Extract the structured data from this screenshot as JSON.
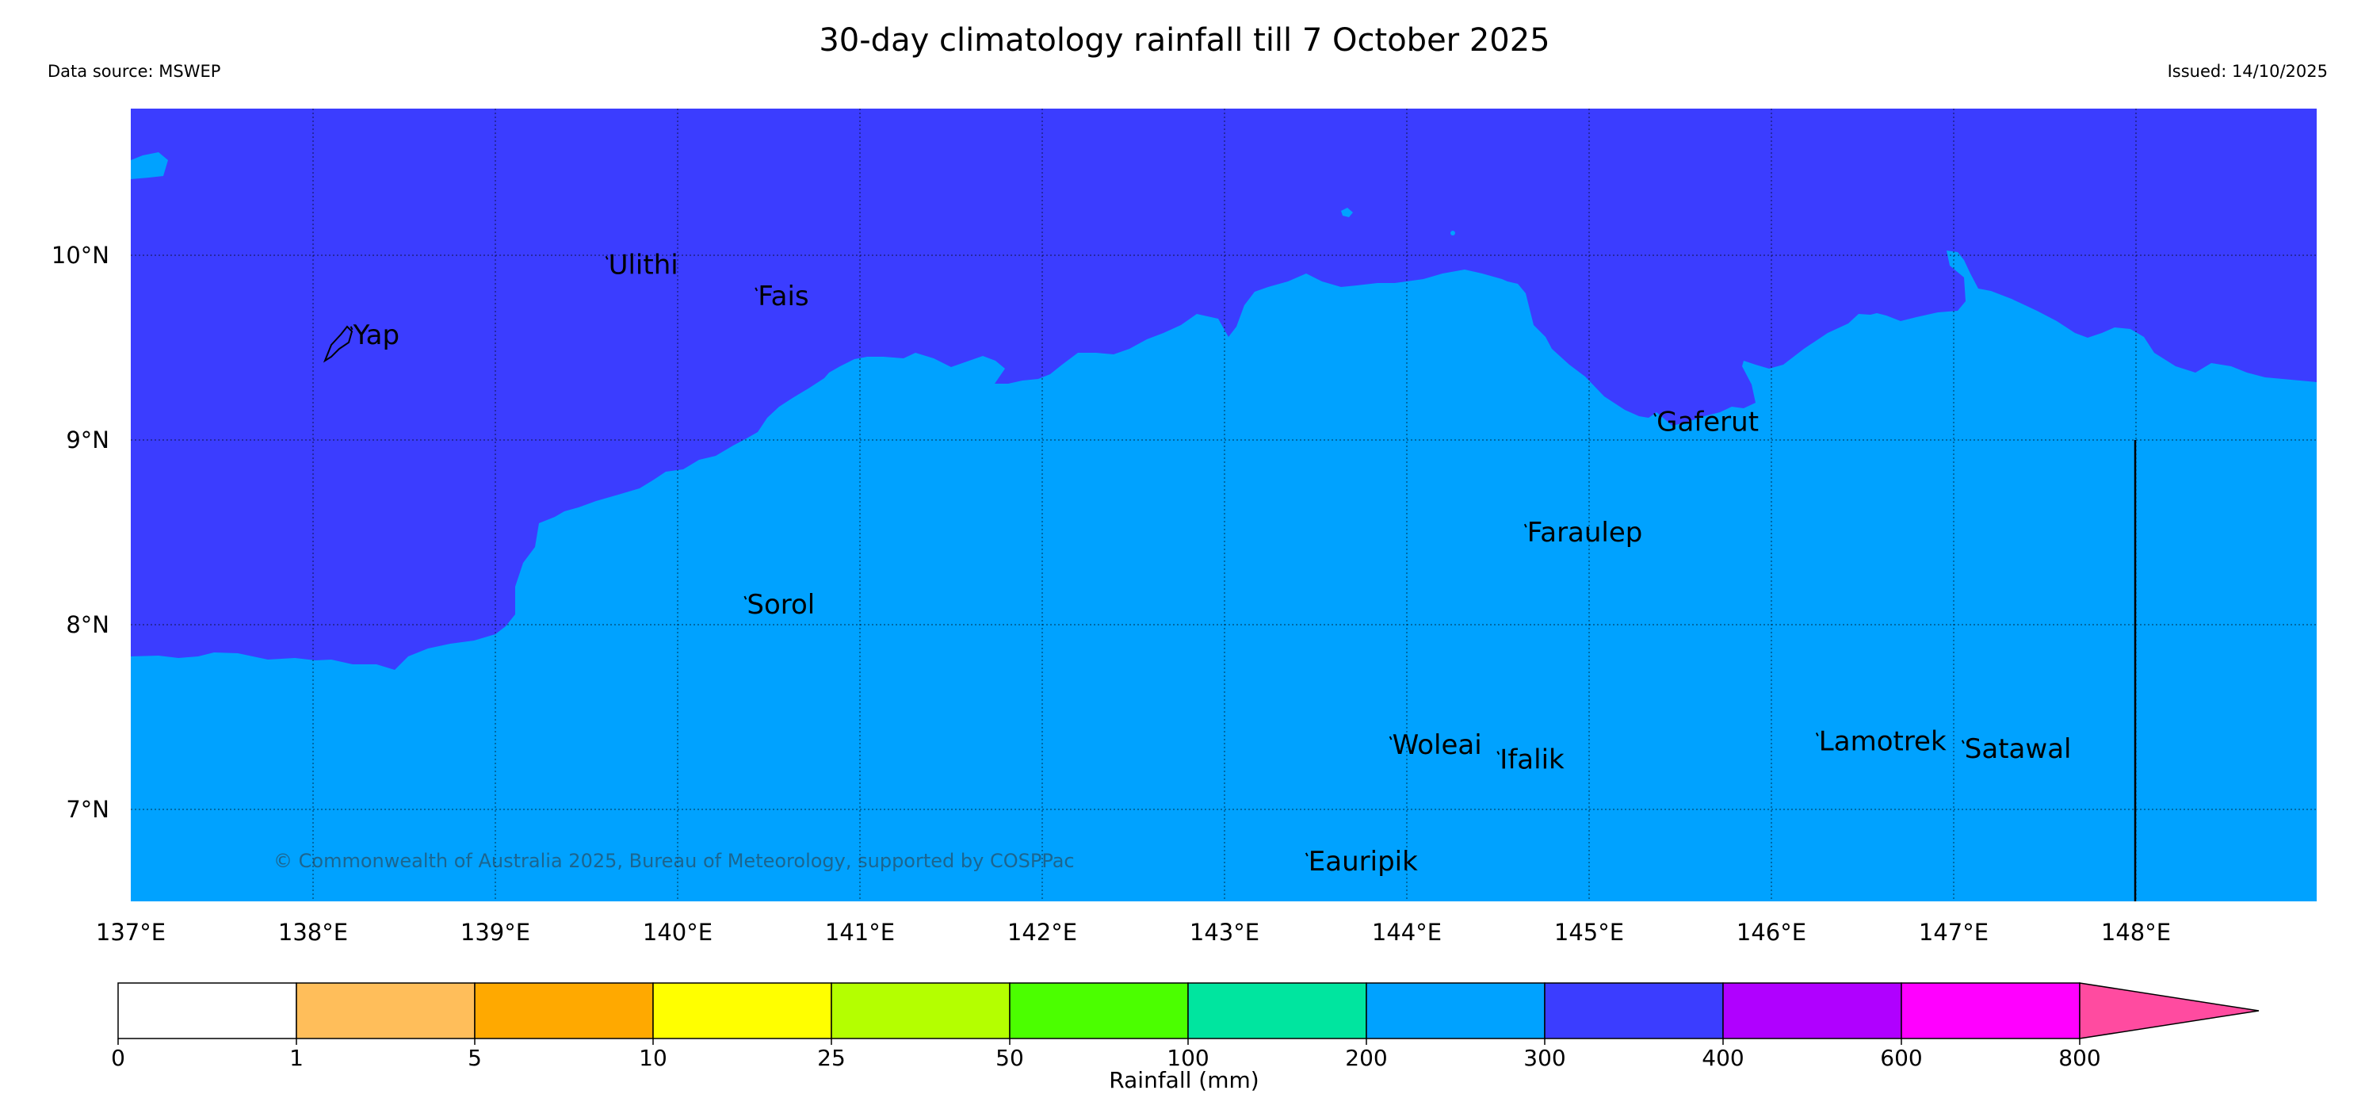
{
  "title": "30-day climatology rainfall till 7 October 2025",
  "data_source": "Data source: MSWEP",
  "issued": "Issued: 14/10/2025",
  "copyright": "© Commonwealth of Australia 2025, Bureau of Meteorology, supported by COSPPac",
  "map": {
    "lon_range": [
      137,
      149
    ],
    "lat_range": [
      6.5,
      10.8
    ],
    "lon_ticks": [
      {
        "value": 137,
        "label": "137°E"
      },
      {
        "value": 138,
        "label": "138°E"
      },
      {
        "value": 139,
        "label": "139°E"
      },
      {
        "value": 140,
        "label": "140°E"
      },
      {
        "value": 141,
        "label": "141°E"
      },
      {
        "value": 142,
        "label": "142°E"
      },
      {
        "value": 143,
        "label": "143°E"
      },
      {
        "value": 144,
        "label": "144°E"
      },
      {
        "value": 145,
        "label": "145°E"
      },
      {
        "value": 146,
        "label": "146°E"
      },
      {
        "value": 147,
        "label": "147°E"
      },
      {
        "value": 148,
        "label": "148°E"
      }
    ],
    "lat_ticks": [
      {
        "value": 10,
        "label": "10°N"
      },
      {
        "value": 9,
        "label": "9°N"
      },
      {
        "value": 8,
        "label": "8°N"
      },
      {
        "value": 7,
        "label": "7°N"
      }
    ],
    "places": [
      {
        "name": "Yap",
        "lon": 138.22,
        "lat": 9.52
      },
      {
        "name": "Ulithi",
        "lon": 139.62,
        "lat": 9.9
      },
      {
        "name": "Fais",
        "lon": 140.44,
        "lat": 9.73
      },
      {
        "name": "Gaferut",
        "lon": 145.37,
        "lat": 9.05
      },
      {
        "name": "Faraulep",
        "lon": 144.66,
        "lat": 8.45
      },
      {
        "name": "Sorol",
        "lon": 140.38,
        "lat": 8.06
      },
      {
        "name": "Woleai",
        "lon": 143.92,
        "lat": 7.3
      },
      {
        "name": "Ifalik",
        "lon": 144.51,
        "lat": 7.22
      },
      {
        "name": "Lamotrek",
        "lon": 146.26,
        "lat": 7.32
      },
      {
        "name": "Satawal",
        "lon": 147.06,
        "lat": 7.28
      },
      {
        "name": "Eauripik",
        "lon": 143.46,
        "lat": 6.67
      }
    ],
    "zone_colors": {
      "300-400": "#3b3dff",
      "200-300": "#00a2ff"
    }
  },
  "colorbar": {
    "label": "Rainfall (mm)",
    "ticks": [
      "0",
      "1",
      "5",
      "10",
      "25",
      "50",
      "100",
      "200",
      "300",
      "400",
      "600",
      "800"
    ],
    "colors": [
      "#ffffff",
      "#ffbe5a",
      "#ffa900",
      "#ffff00",
      "#b4ff00",
      "#4bff00",
      "#00e59f",
      "#00a2ff",
      "#3b3dff",
      "#b000ff",
      "#ff00ff",
      "#ff4ba0"
    ]
  }
}
